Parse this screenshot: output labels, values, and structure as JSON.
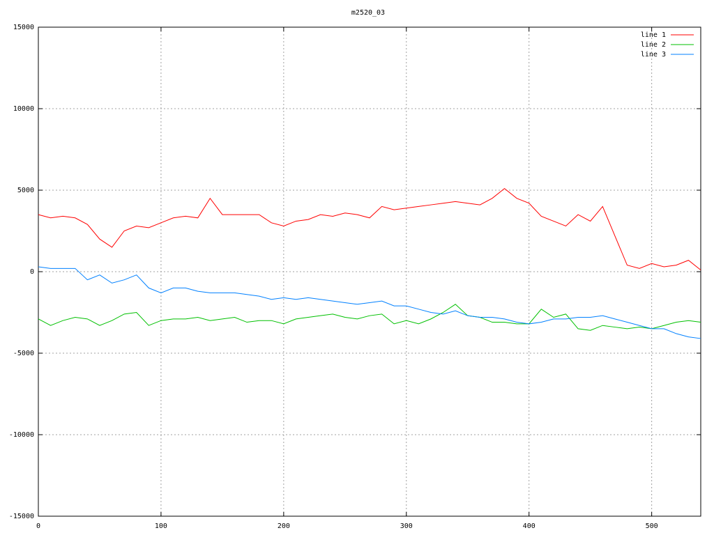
{
  "chart_data": {
    "type": "line",
    "title": "m2520_03",
    "x": [
      0,
      10,
      20,
      30,
      40,
      50,
      60,
      70,
      80,
      90,
      100,
      110,
      120,
      130,
      140,
      150,
      160,
      170,
      180,
      190,
      200,
      210,
      220,
      230,
      240,
      250,
      260,
      270,
      280,
      290,
      300,
      310,
      320,
      330,
      340,
      350,
      360,
      370,
      380,
      390,
      400,
      410,
      420,
      430,
      440,
      450,
      460,
      470,
      480,
      490,
      500,
      510,
      520,
      530,
      540
    ],
    "series": [
      {
        "name": "line 1",
        "color": "#ff0000",
        "values": [
          3500,
          3300,
          3400,
          3300,
          2900,
          2000,
          1500,
          2500,
          2800,
          2700,
          3000,
          3300,
          3400,
          3300,
          4500,
          3500,
          3500,
          3500,
          3500,
          3000,
          2800,
          3100,
          3200,
          3500,
          3400,
          3600,
          3500,
          3300,
          4000,
          3800,
          3900,
          4000,
          4100,
          4200,
          4300,
          4200,
          4100,
          4500,
          5100,
          4500,
          4200,
          3400,
          3100,
          2800,
          3500,
          3100,
          4000,
          2200,
          400,
          200,
          500,
          300,
          400,
          700,
          100
        ]
      },
      {
        "name": "line 2",
        "color": "#00c000",
        "values": [
          -2900,
          -3300,
          -3000,
          -2800,
          -2900,
          -3300,
          -3000,
          -2600,
          -2500,
          -3300,
          -3000,
          -2900,
          -2900,
          -2800,
          -3000,
          -2900,
          -2800,
          -3100,
          -3000,
          -3000,
          -3200,
          -2900,
          -2800,
          -2700,
          -2600,
          -2800,
          -2900,
          -2700,
          -2600,
          -3200,
          -3000,
          -3200,
          -2900,
          -2500,
          -2000,
          -2700,
          -2800,
          -3100,
          -3100,
          -3200,
          -3200,
          -2300,
          -2800,
          -2600,
          -3500,
          -3600,
          -3300,
          -3400,
          -3500,
          -3400,
          -3500,
          -3300,
          -3100,
          -3000,
          -3100
        ]
      },
      {
        "name": "line 3",
        "color": "#0080ff",
        "values": [
          300,
          200,
          200,
          200,
          -500,
          -200,
          -700,
          -500,
          -200,
          -1000,
          -1300,
          -1000,
          -1000,
          -1200,
          -1300,
          -1300,
          -1300,
          -1400,
          -1500,
          -1700,
          -1600,
          -1700,
          -1600,
          -1700,
          -1800,
          -1900,
          -2000,
          -1900,
          -1800,
          -2100,
          -2100,
          -2300,
          -2500,
          -2600,
          -2400,
          -2700,
          -2800,
          -2800,
          -2900,
          -3100,
          -3200,
          -3100,
          -2900,
          -2900,
          -2800,
          -2800,
          -2700,
          -2900,
          -3100,
          -3300,
          -3500,
          -3500,
          -3800,
          -4000,
          -4100
        ]
      }
    ],
    "xlim": [
      0,
      540
    ],
    "ylim": [
      -15000,
      15000
    ],
    "xticks": [
      0,
      100,
      200,
      300,
      400,
      500
    ],
    "yticks": [
      -15000,
      -10000,
      -5000,
      0,
      5000,
      10000,
      15000
    ],
    "grid": true,
    "legend": "top-right"
  }
}
